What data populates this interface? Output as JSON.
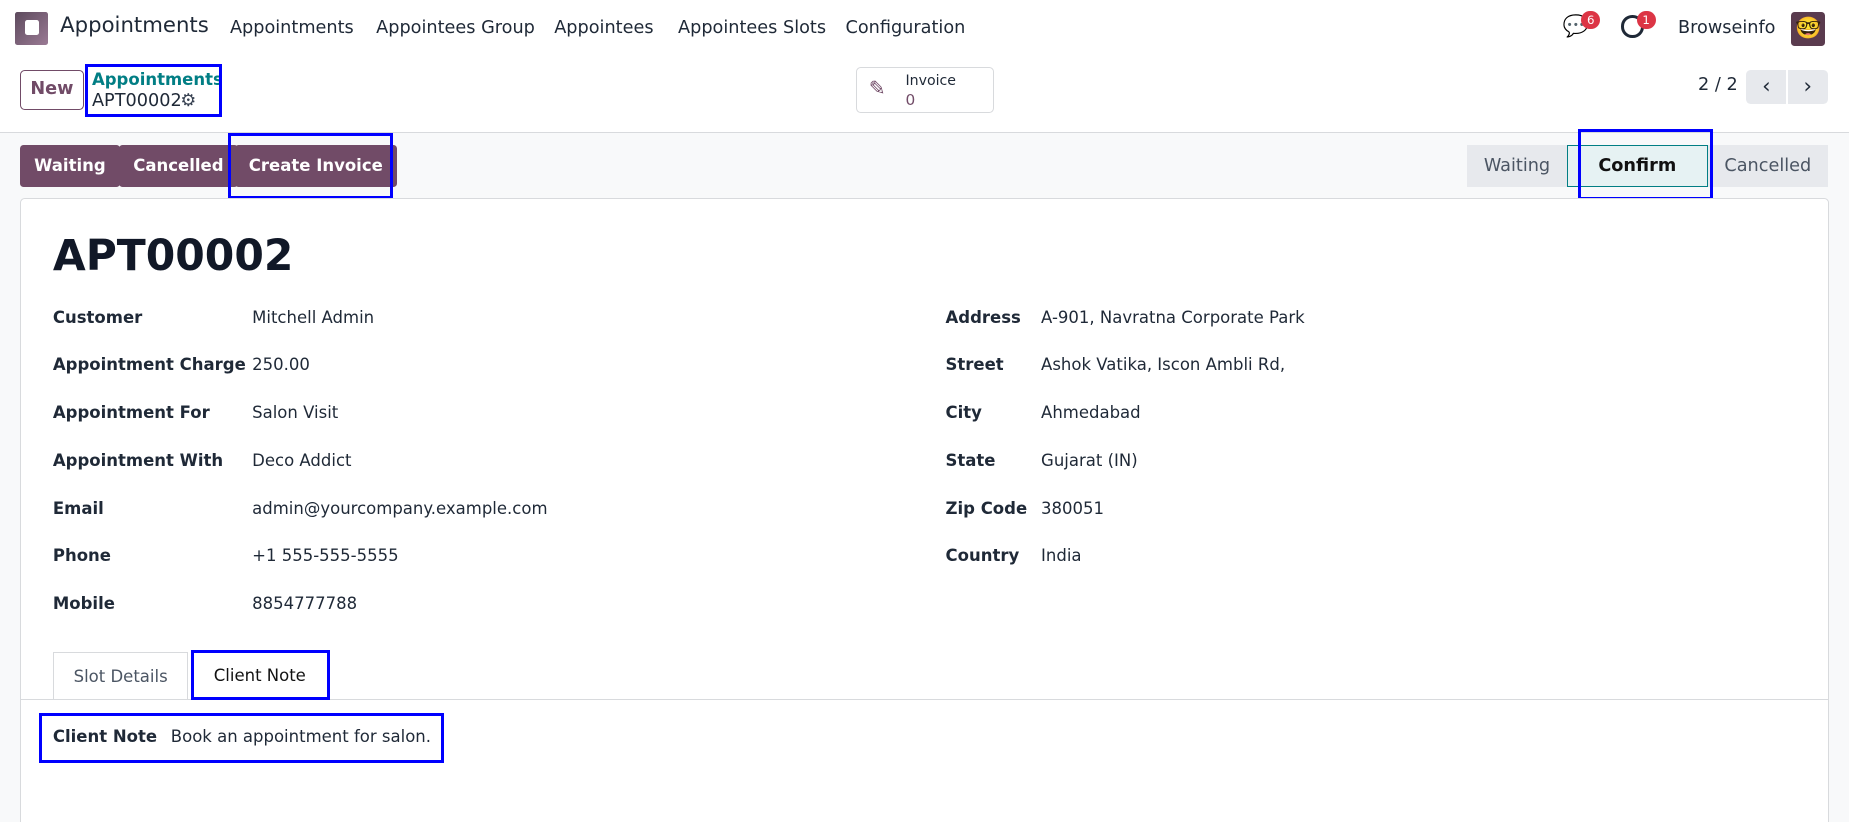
{
  "navbar": {
    "app_title": "Appointments",
    "menu": [
      "Appointments",
      "Appointees Group",
      "Appointees",
      "Appointees Slots",
      "Configuration"
    ],
    "messages_count": "6",
    "activities_count": "1",
    "user": "Browseinfo"
  },
  "control": {
    "new_label": "New",
    "breadcrumb_parent": "Appointments",
    "record": "APT00002",
    "invoice_label": "Invoice",
    "invoice_count": "0",
    "pager": "2 / 2"
  },
  "actions": [
    "Waiting",
    "Cancelled",
    "Create Invoice"
  ],
  "statusbar": {
    "stages": [
      "Waiting",
      "Confirm",
      "Cancelled"
    ],
    "active": "Confirm",
    "accent": "#017e84"
  },
  "form": {
    "title": "APT00002",
    "left": [
      {
        "label": "Customer",
        "value": "Mitchell Admin"
      },
      {
        "label": "Appointment Charge",
        "value": "250.00"
      },
      {
        "label": "Appointment For",
        "value": "Salon Visit"
      },
      {
        "label": "Appointment With",
        "value": "Deco Addict"
      },
      {
        "label": "Email",
        "value": "admin@yourcompany.example.com"
      },
      {
        "label": "Phone",
        "value": "+1 555-555-5555"
      },
      {
        "label": "Mobile",
        "value": "8854777788"
      }
    ],
    "right": [
      {
        "label": "Address",
        "value": "A-901, Navratna Corporate Park"
      },
      {
        "label": "Street",
        "value": "Ashok Vatika, Iscon Ambli Rd,"
      },
      {
        "label": "City",
        "value": "Ahmedabad"
      },
      {
        "label": "State",
        "value": "Gujarat (IN)"
      },
      {
        "label": "Zip Code",
        "value": "380051"
      },
      {
        "label": "Country",
        "value": "India"
      }
    ],
    "tabs": [
      "Slot Details",
      "Client Note"
    ],
    "active_tab": "Client Note",
    "client_note_label": "Client Note",
    "client_note": "Book an appointment for salon."
  },
  "colors": {
    "primary": "#714b67",
    "link": "#017e84"
  }
}
